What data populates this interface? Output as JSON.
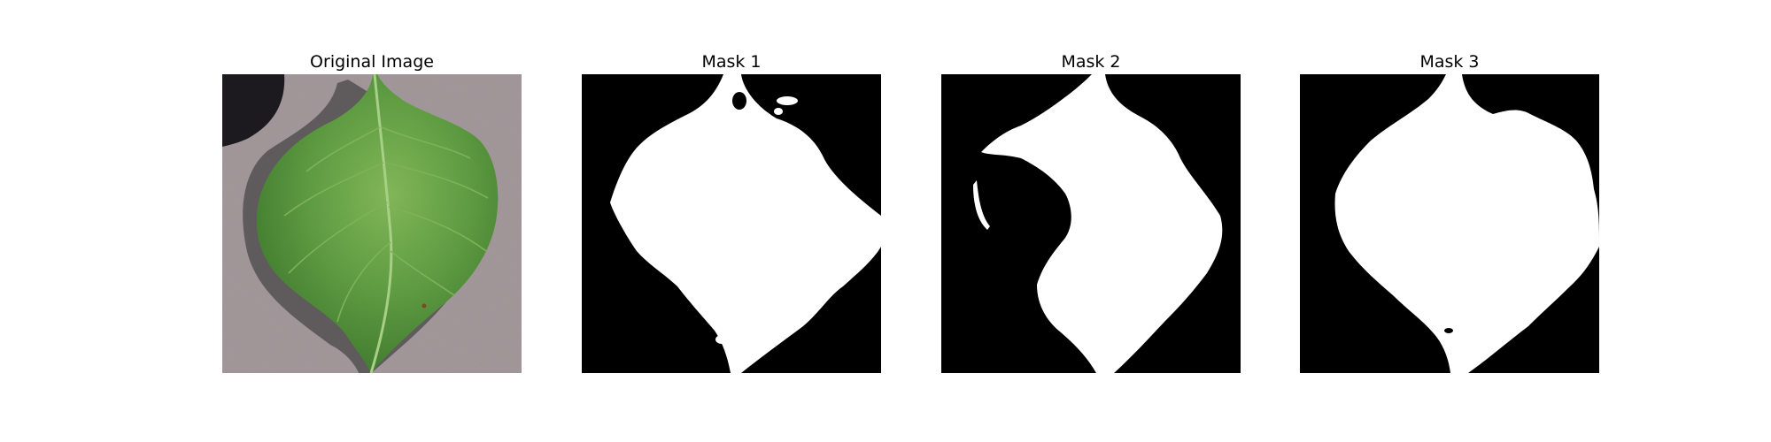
{
  "figure": {
    "panels": [
      {
        "title": "Original Image",
        "kind": "photo",
        "subject": "green leaf on gray surface"
      },
      {
        "title": "Mask 1",
        "kind": "mask"
      },
      {
        "title": "Mask 2",
        "kind": "mask"
      },
      {
        "title": "Mask 3",
        "kind": "mask"
      }
    ]
  },
  "colors": {
    "background_surface": "#9e9295",
    "shadow": "#1c1a1e",
    "leaf_dark": "#3d7a2a",
    "leaf_mid": "#5a9a3c",
    "leaf_light": "#8bbf5e",
    "vein": "#a7cf86",
    "mask_bg": "#000000",
    "mask_fg": "#ffffff"
  }
}
